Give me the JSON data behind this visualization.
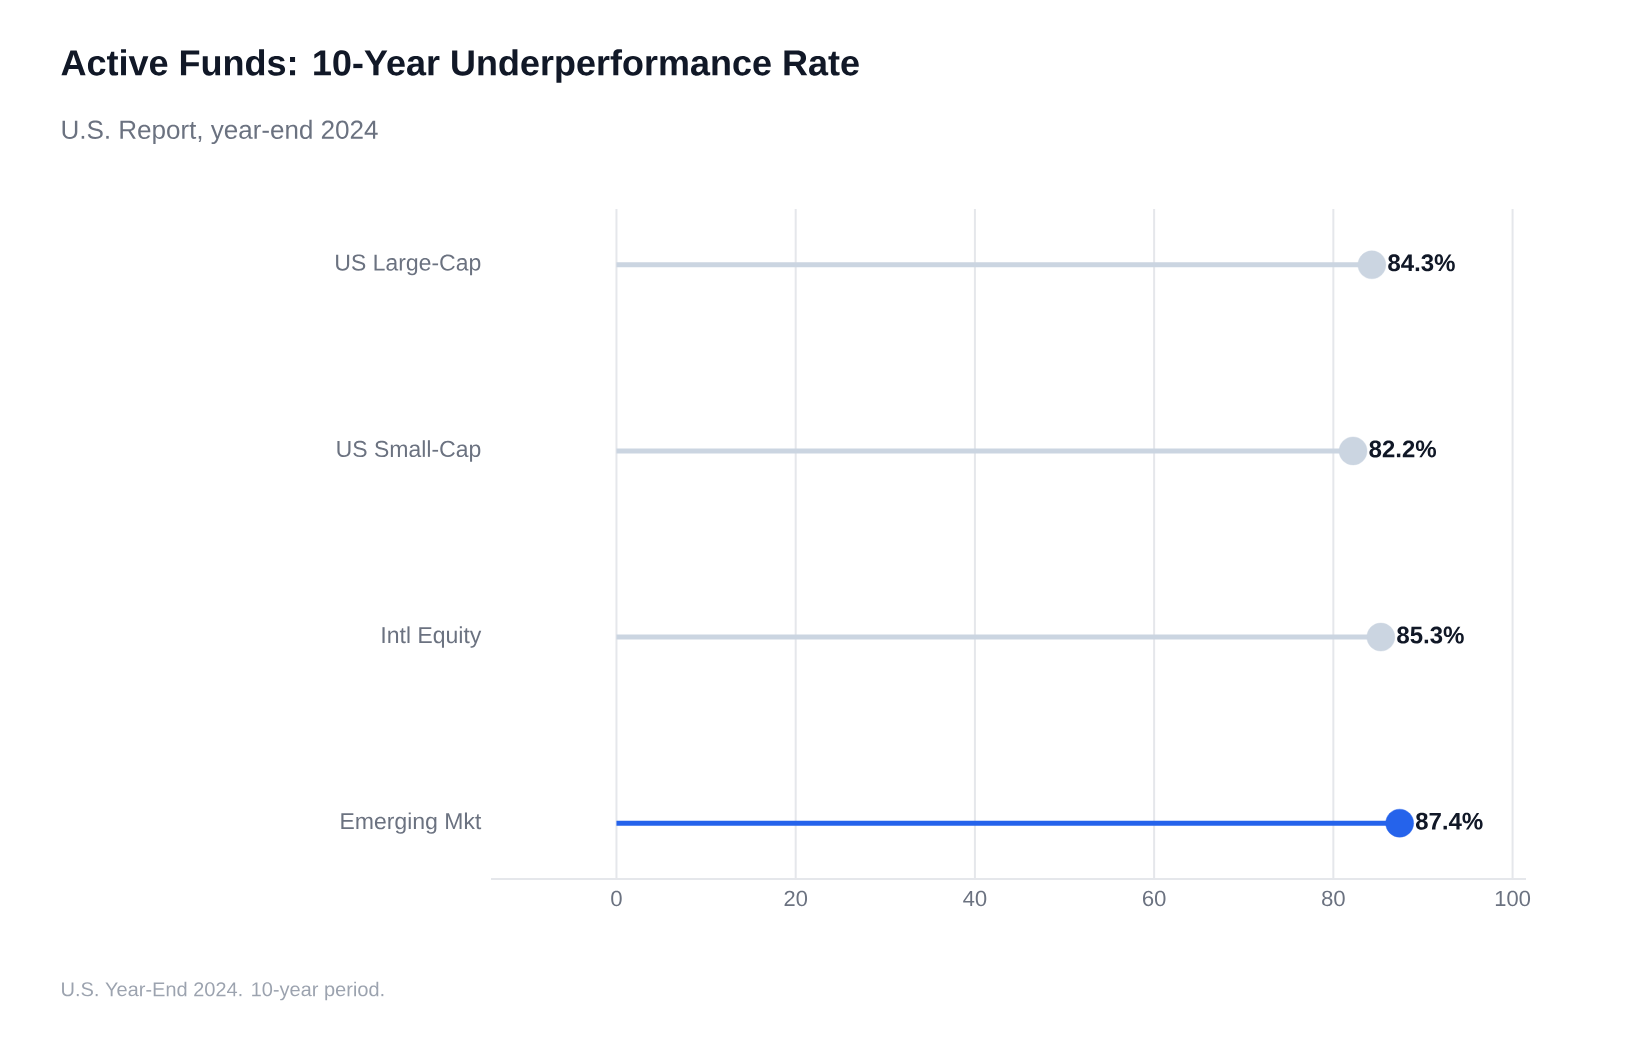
{
  "chart_data": {
    "type": "lollipop",
    "orientation": "horizontal",
    "title": "Active Funds: 10-Year Underperformance Rate",
    "subtitle": "U.S. Report, year-end 2024",
    "categories": [
      "US Large-Cap",
      "US Small-Cap",
      "Intl Equity",
      "Emerging Mkt"
    ],
    "values": [
      84.3,
      82.2,
      85.3,
      87.4
    ],
    "colors": [
      "#cbd5e1",
      "#cbd5e1",
      "#cbd5e1",
      "#2563eb"
    ],
    "value_labels": [
      "84.3%",
      "82.2%",
      "85.3%",
      "87.4%"
    ],
    "xlim": [
      -14,
      101.5
    ],
    "xticks": [
      0,
      20,
      40,
      60,
      80,
      100
    ],
    "grid": "x",
    "annotations": [
      "U.S. Year-End 2024. 10-year period."
    ]
  }
}
